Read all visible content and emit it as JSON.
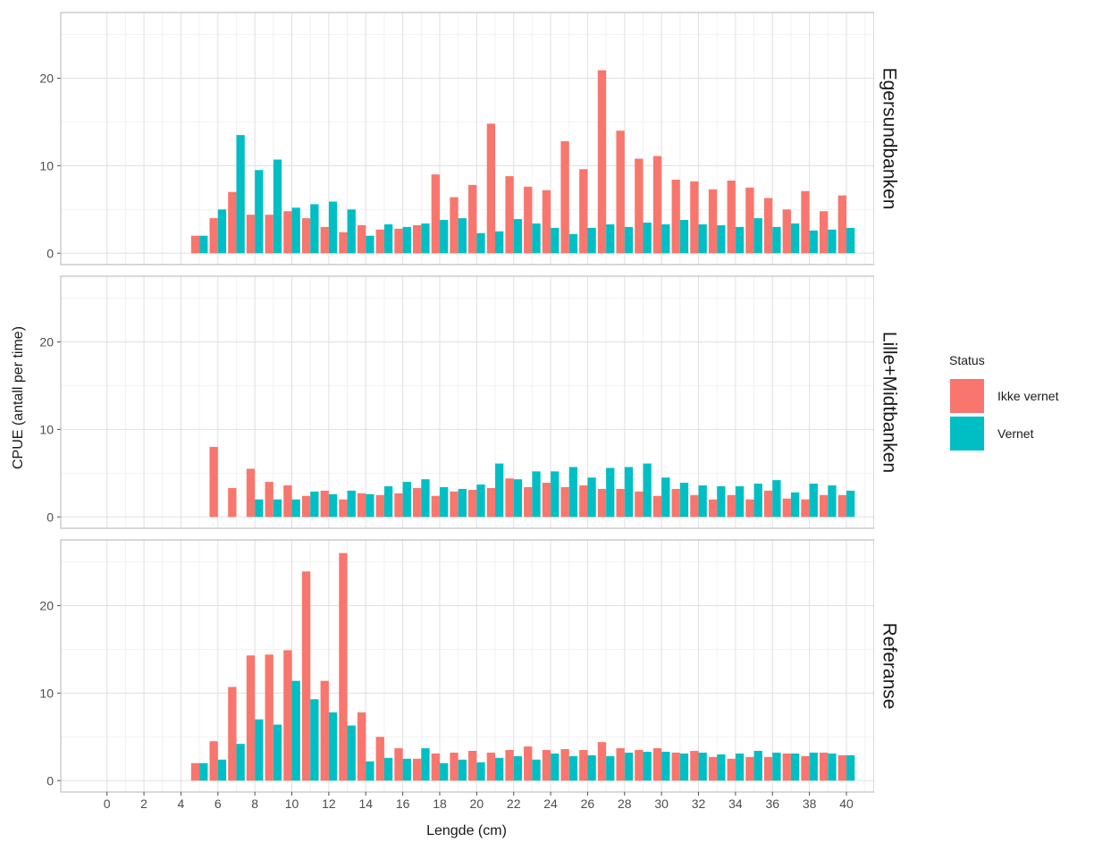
{
  "chart_data": {
    "type": "bar",
    "layout": "faceted-rows",
    "xlabel": "Lengde (cm)",
    "ylabel": "CPUE (antall per time)",
    "xlim": [
      -2.5,
      41.5
    ],
    "ylim": [
      -1.3,
      27.5
    ],
    "x_ticks": [
      0,
      2,
      4,
      6,
      8,
      10,
      12,
      14,
      16,
      18,
      20,
      22,
      24,
      26,
      28,
      30,
      32,
      34,
      36,
      38,
      40
    ],
    "y_ticks": [
      0,
      10,
      20
    ],
    "grid": true,
    "legend": {
      "title": "Status",
      "position": "right",
      "entries": [
        {
          "name": "Ikke vernet",
          "color": "#F8766D"
        },
        {
          "name": "Vernet",
          "color": "#00BFC4"
        }
      ]
    },
    "x": [
      5,
      6,
      7,
      8,
      9,
      10,
      11,
      12,
      13,
      14,
      15,
      16,
      17,
      18,
      19,
      20,
      21,
      22,
      23,
      24,
      25,
      26,
      27,
      28,
      29,
      30,
      31,
      32,
      33,
      34,
      35,
      36,
      37,
      38,
      39,
      40
    ],
    "facets": [
      {
        "label": "Egersundbanken",
        "series": [
          {
            "name": "Ikke vernet",
            "values": [
              2,
              4,
              7,
              4.4,
              4.4,
              4.8,
              4,
              3,
              2.4,
              3.2,
              2.7,
              2.8,
              3.2,
              9,
              6.4,
              7.8,
              14.8,
              8.8,
              7.6,
              7.2,
              12.8,
              9.6,
              20.9,
              14,
              10.8,
              11.1,
              8.4,
              8.2,
              7.3,
              8.3,
              7.5,
              6.3,
              5,
              7.1,
              4.8,
              6.6
            ]
          },
          {
            "name": "Vernet",
            "values": [
              2,
              5,
              13.5,
              9.5,
              10.7,
              5.2,
              5.6,
              5.9,
              5,
              2,
              3.3,
              3,
              3.4,
              3.8,
              4,
              2.3,
              2.5,
              3.9,
              3.4,
              2.9,
              2.2,
              2.9,
              3.3,
              3,
              3.5,
              3.3,
              3.8,
              3.3,
              3.2,
              3,
              4,
              3,
              3.4,
              2.6,
              2.7,
              2.9
            ]
          }
        ]
      },
      {
        "label": "Lille+Midtbanken",
        "series": [
          {
            "name": "Ikke vernet",
            "values": [
              null,
              8,
              3.3,
              5.5,
              4,
              3.6,
              2.4,
              3,
              2,
              2.7,
              2.5,
              2.7,
              3.3,
              2.4,
              2.9,
              3.1,
              3.3,
              4.4,
              3.4,
              3.9,
              3.4,
              3.6,
              3.2,
              3.2,
              2.9,
              2.4,
              3.2,
              2.5,
              2,
              2.5,
              2,
              3,
              2.1,
              2,
              2.5,
              2.5
            ]
          },
          {
            "name": "Vernet",
            "values": [
              null,
              null,
              null,
              2,
              2,
              2,
              2.9,
              2.6,
              3,
              2.6,
              3.5,
              4,
              4.3,
              3.4,
              3.2,
              3.7,
              6.1,
              4.3,
              5.2,
              5.2,
              5.7,
              4.5,
              5.6,
              5.7,
              6.1,
              4.5,
              3.9,
              3.6,
              3.5,
              3.5,
              3.8,
              4.2,
              2.8,
              3.8,
              3.6,
              3
            ]
          }
        ]
      },
      {
        "label": "Referanse",
        "series": [
          {
            "name": "Ikke vernet",
            "values": [
              2,
              4.5,
              10.7,
              14.3,
              14.4,
              14.9,
              23.9,
              11.4,
              26,
              7.8,
              5,
              3.7,
              2.5,
              3.1,
              3.2,
              3.4,
              3.2,
              3.5,
              3.9,
              3.5,
              3.6,
              3.5,
              4.4,
              3.7,
              3.5,
              3.7,
              3.2,
              3.4,
              2.7,
              2.5,
              2.7,
              2.7,
              3.1,
              2.8,
              3.2,
              2.9
            ]
          },
          {
            "name": "Vernet",
            "values": [
              2,
              2.4,
              4.2,
              7,
              6.4,
              11.4,
              9.3,
              7.8,
              6.3,
              2.2,
              2.6,
              2.5,
              3.7,
              2,
              2.4,
              2.1,
              2.6,
              2.8,
              2.4,
              3.1,
              2.8,
              2.9,
              2.8,
              3.2,
              3.3,
              3.3,
              3.1,
              3.2,
              3,
              3.1,
              3.4,
              3.2,
              3.1,
              3.2,
              3.1,
              2.9
            ]
          }
        ]
      }
    ]
  }
}
